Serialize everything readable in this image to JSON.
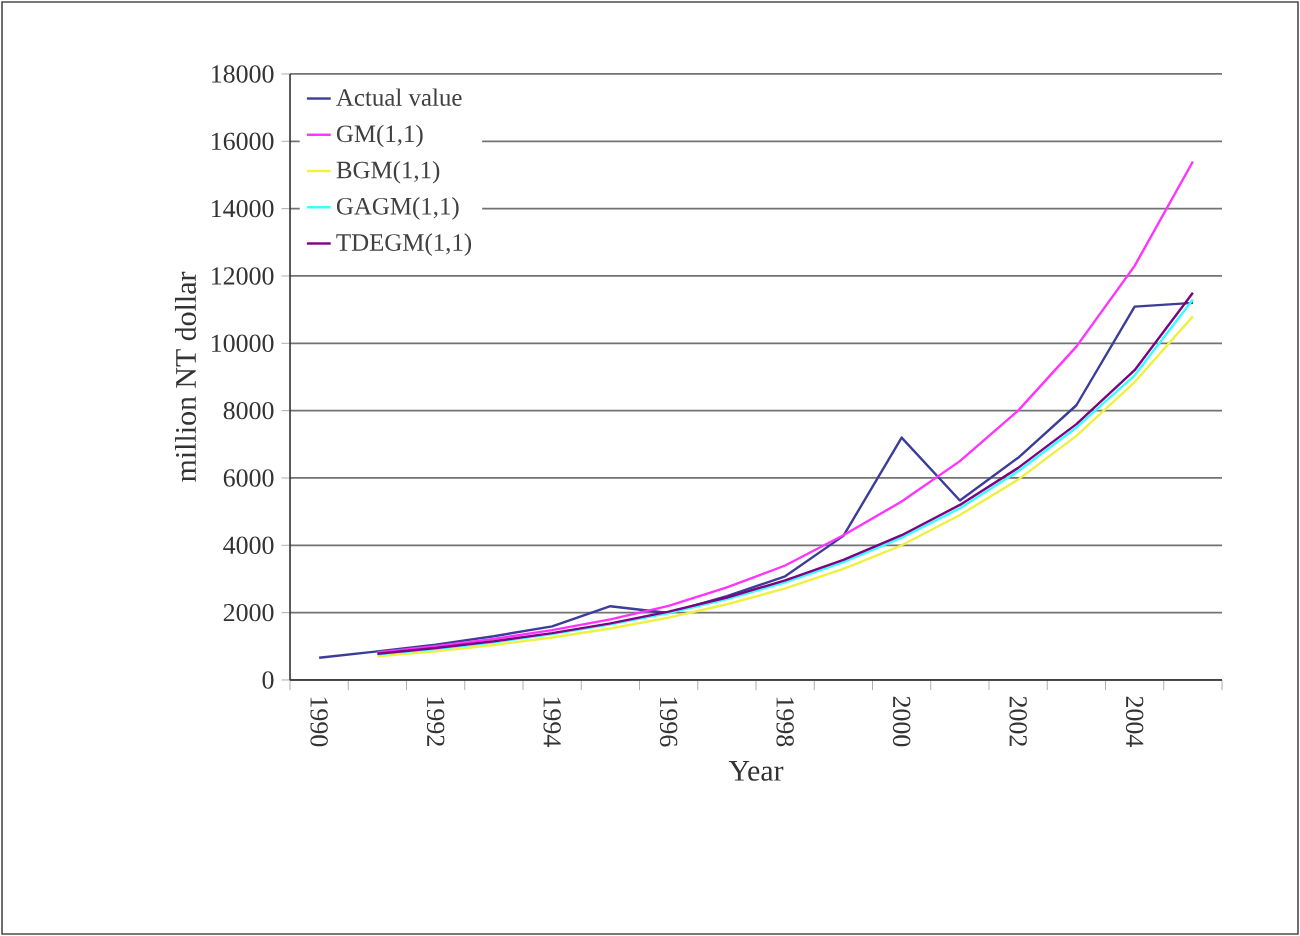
{
  "chart_data": {
    "type": "line",
    "xlabel": "Year",
    "ylabel": "million NT dollar",
    "categories": [
      "1990",
      null,
      "1992",
      null,
      "1994",
      null,
      "1996",
      null,
      "1998",
      null,
      "2000",
      null,
      "2002",
      null,
      "2004",
      null
    ],
    "ylim": [
      0,
      18000
    ],
    "yticks": [
      0,
      2000,
      4000,
      6000,
      8000,
      10000,
      12000,
      14000,
      16000,
      18000
    ],
    "grid": "y",
    "legend": "top left",
    "marker": "none",
    "series": [
      {
        "name": "Actual value",
        "color": "#3c3c9a",
        "values": [
          660,
          850,
          1050,
          1300,
          1590,
          2190,
          1990,
          2490,
          3080,
          4280,
          7200,
          5330,
          6600,
          8160,
          11090,
          11200
        ]
      },
      {
        "name": "GM(1,1)",
        "color": "#ff33ff",
        "values": [
          null,
          820,
          1000,
          1220,
          1480,
          1800,
          2200,
          2750,
          3400,
          4300,
          5300,
          6500,
          8000,
          9900,
          12300,
          15400
        ]
      },
      {
        "name": "BGM(1,1)",
        "color": "#f0f040",
        "values": [
          null,
          700,
          850,
          1040,
          1260,
          1530,
          1850,
          2250,
          2720,
          3300,
          4000,
          4900,
          5950,
          7250,
          8850,
          10800
        ]
      },
      {
        "name": "GAGM(1,1)",
        "color": "#33ffff",
        "values": [
          null,
          760,
          920,
          1120,
          1360,
          1650,
          1990,
          2400,
          2900,
          3500,
          4230,
          5100,
          6200,
          7500,
          9050,
          11300
        ]
      },
      {
        "name": "TDEGM(1,1)",
        "color": "#800080",
        "values": [
          null,
          780,
          950,
          1150,
          1390,
          1680,
          2030,
          2450,
          2960,
          3570,
          4300,
          5200,
          6300,
          7600,
          9200,
          11500
        ]
      }
    ]
  }
}
